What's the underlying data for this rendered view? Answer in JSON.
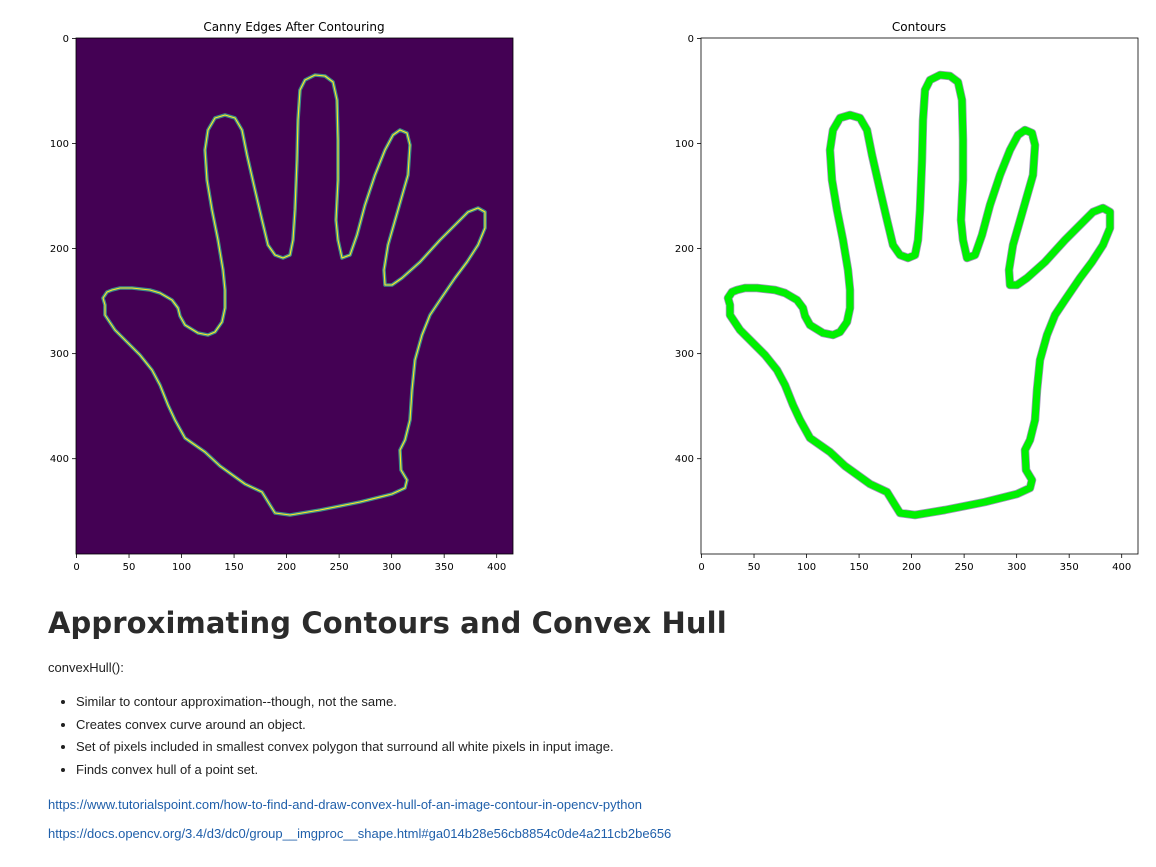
{
  "figures": {
    "left_title": "Canny Edges After Contouring",
    "right_title": "Contours",
    "colors": {
      "left_background": "#440154",
      "left_edge_outer": "#3b8b8b",
      "left_edge_inner": "#fde725",
      "right_background": "#ffffff",
      "contour_green": "#00f000",
      "contour_shadow": "#7a6aa0"
    },
    "x_ticks": [
      "0",
      "50",
      "100",
      "150",
      "200",
      "250",
      "300",
      "350",
      "400"
    ],
    "y_ticks": [
      "0",
      "100",
      "200",
      "300",
      "400"
    ]
  },
  "article": {
    "heading": "Approximating Contours and Convex Hull",
    "lead": "convexHull():",
    "bullets": [
      "Similar to contour approximation--though, not the same.",
      "Creates convex curve around an object.",
      "Set of pixels included in smallest convex polygon that surround all white pixels in input image.",
      "Finds convex hull of a point set."
    ],
    "links": [
      "https://www.tutorialspoint.com/how-to-find-and-draw-convex-hull-of-an-image-contour-in-opencv-python",
      "https://docs.opencv.org/3.4/d3/dc0/group__imgproc__shape.html#ga014b28e56cb8854c0de4a211cb2be656"
    ]
  }
}
